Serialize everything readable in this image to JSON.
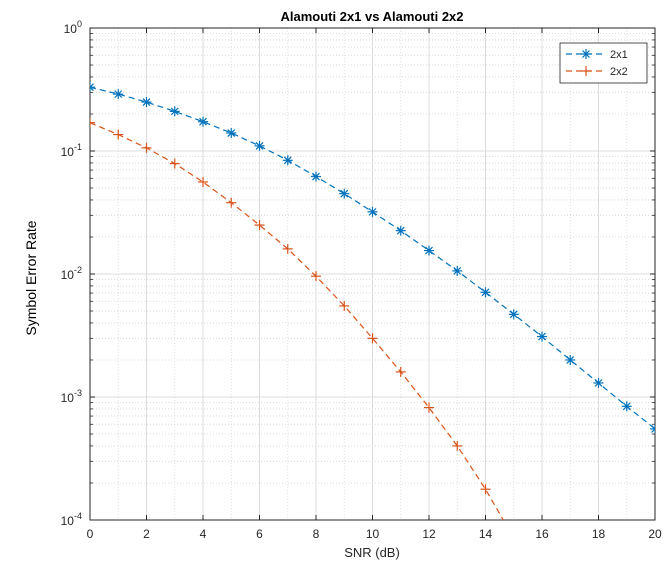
{
  "chart_data": {
    "type": "line",
    "title": "Alamouti 2x1 vs Alamouti 2x2",
    "xlabel": "SNR (dB)",
    "ylabel": "Symbol Error Rate",
    "xlim": [
      0,
      20
    ],
    "ylim": [
      0.0001,
      1
    ],
    "yscale": "log",
    "grid": true,
    "minor_grid": true,
    "legend_position": "top-right",
    "x_ticks": [
      "0",
      "2",
      "4",
      "6",
      "8",
      "10",
      "12",
      "14",
      "16",
      "18",
      "20"
    ],
    "y_ticks": [
      {
        "base": "10",
        "exp": "0"
      },
      {
        "base": "10",
        "exp": "-1"
      },
      {
        "base": "10",
        "exp": "-2"
      },
      {
        "base": "10",
        "exp": "-3"
      },
      {
        "base": "10",
        "exp": "-4"
      }
    ],
    "series": [
      {
        "name": "2x1",
        "color": "#0072BD",
        "marker": "asterisk",
        "line_style": "dashed",
        "x": [
          0,
          1,
          2,
          3,
          4,
          5,
          6,
          7,
          8,
          9,
          10,
          11,
          12,
          13,
          14,
          15,
          16,
          17,
          18,
          19,
          20
        ],
        "y": [
          0.33,
          0.29,
          0.25,
          0.21,
          0.173,
          0.14,
          0.11,
          0.084,
          0.062,
          0.045,
          0.032,
          0.0225,
          0.0155,
          0.0106,
          0.0071,
          0.0047,
          0.0031,
          0.002,
          0.0013,
          0.00084,
          0.00055
        ]
      },
      {
        "name": "2x2",
        "color": "#D95319",
        "marker": "plus",
        "line_style": "dashed",
        "x": [
          0,
          1,
          2,
          3,
          4,
          5,
          6,
          7,
          8,
          9,
          10,
          11,
          12,
          13,
          14,
          15
        ],
        "y": [
          0.17,
          0.136,
          0.106,
          0.079,
          0.056,
          0.038,
          0.025,
          0.016,
          0.0096,
          0.0055,
          0.003,
          0.0016,
          0.00082,
          0.0004,
          0.000178,
          7.1e-05
        ]
      }
    ]
  }
}
